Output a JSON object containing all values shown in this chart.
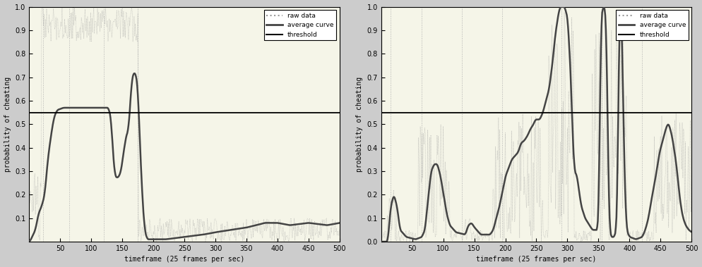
{
  "threshold": 0.55,
  "xlim": [
    0,
    500
  ],
  "ylim": [
    0,
    1.0
  ],
  "yticks_left": [
    0.1,
    0.2,
    0.3,
    0.4,
    0.5,
    0.6,
    0.7,
    0.8,
    0.9,
    1.0
  ],
  "yticks_right": [
    0,
    0.1,
    0.2,
    0.3,
    0.4,
    0.5,
    0.6,
    0.7,
    0.8,
    0.9,
    1.0
  ],
  "xticks": [
    50,
    100,
    150,
    200,
    250,
    300,
    350,
    400,
    450,
    500
  ],
  "xlabel": "timeframe (25 frames per sec)",
  "ylabel1": "probability of cheating",
  "ylabel2": "probability of cheating",
  "bg_color": "#f5f5e8",
  "raw_color": "#999999",
  "avg_color": "#444444",
  "threshold_color": "#000000",
  "legend_labels": [
    "raw data",
    "average curve",
    "threshold"
  ],
  "fig_bg": "#cccccc",
  "vline_color": "#aaaaaa",
  "vlines1": [
    22,
    65,
    120,
    175
  ],
  "vlines2": [
    15,
    65,
    130,
    195,
    290,
    355,
    420
  ]
}
